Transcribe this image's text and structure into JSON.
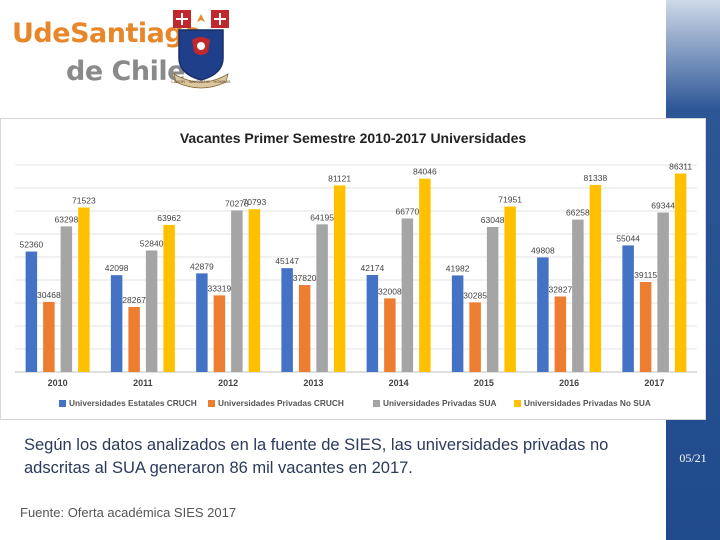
{
  "logo": {
    "line1": "UdeSantiago",
    "line2": "de Chile",
    "crest_text": "LABOR · INNOVATIO · HOMINIS"
  },
  "chart_data": {
    "type": "bar",
    "title": "Vacantes Primer Semestre 2010-2017 Universidades",
    "categories": [
      "2010",
      "2011",
      "2012",
      "2013",
      "2014",
      "2015",
      "2016",
      "2017"
    ],
    "series": [
      {
        "name": "Universidades Estatales CRUCH",
        "color": "#4472c4",
        "values": [
          52360,
          42098,
          42879,
          45147,
          42174,
          41982,
          49808,
          55044
        ]
      },
      {
        "name": "Universidades Privadas CRUCH",
        "color": "#ed7d31",
        "values": [
          30468,
          28267,
          33319,
          37820,
          32008,
          30285,
          32827,
          39115
        ]
      },
      {
        "name": "Universidades Privadas SUA",
        "color": "#a5a5a5",
        "values": [
          63298,
          52840,
          70278,
          64195,
          66770,
          63048,
          66258,
          69344
        ]
      },
      {
        "name": "Universidades Privadas No SUA",
        "color": "#ffc000",
        "values": [
          71523,
          63962,
          70793,
          81121,
          84046,
          71951,
          81338,
          86311
        ]
      }
    ],
    "ylim": [
      0,
      90000
    ],
    "gridlines": true,
    "legend": "bottom"
  },
  "caption": "Según los datos analizados en la fuente de SIES, las universidades privadas no adscritas al SUA generaron 86 mil vacantes en 2017.",
  "source": "Fuente: Oferta académica SIES 2017",
  "page": "05/21"
}
